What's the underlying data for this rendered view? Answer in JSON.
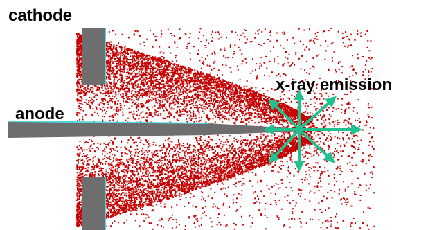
{
  "labels": {
    "cathode": "cathode",
    "anode": "anode",
    "emission": "x-ray emission"
  }
}
